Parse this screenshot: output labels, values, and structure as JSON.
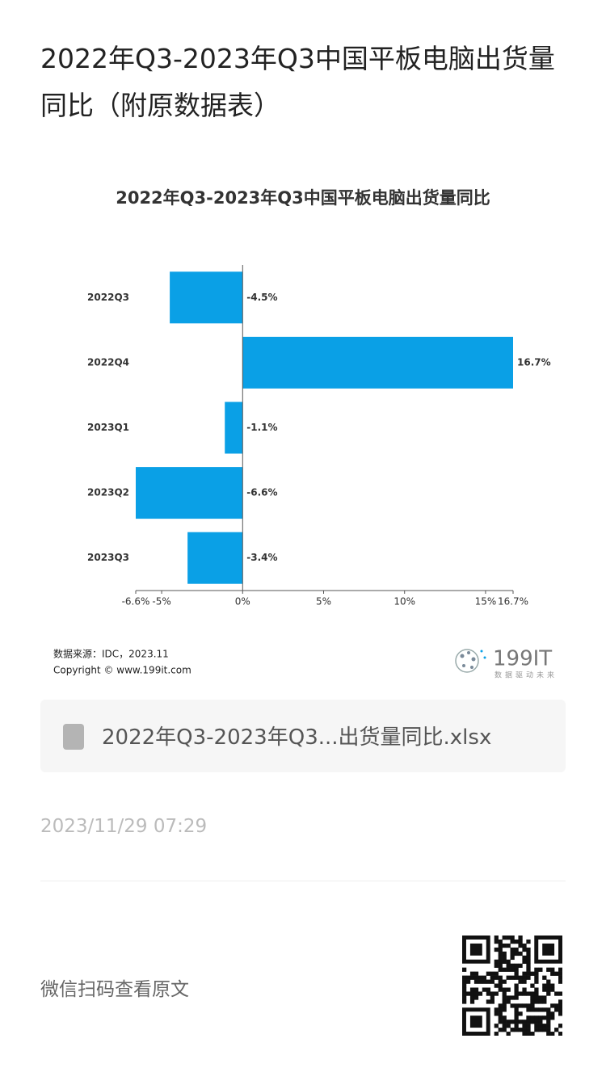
{
  "page_title": "2022年Q3-2023年Q3中国平板电脑出货量同比（附原数据表）",
  "chart_data": {
    "type": "barh",
    "title": "2022年Q3-2023年Q3中国平板电脑出货量同比",
    "categories": [
      "2022Q3",
      "2022Q4",
      "2023Q1",
      "2023Q2",
      "2023Q3"
    ],
    "values": [
      -4.5,
      16.7,
      -1.1,
      -6.6,
      -3.4
    ],
    "value_labels": [
      "-4.5%",
      "16.7%",
      "-1.1%",
      "-6.6%",
      "-3.4%"
    ],
    "color": "#0aa0e6",
    "xlim": [
      -6.6,
      16.7
    ],
    "xticks": [
      {
        "value": -6.6,
        "label": "-6.6%"
      },
      {
        "value": -5,
        "label": "-5%"
      },
      {
        "value": 0,
        "label": "0%"
      },
      {
        "value": 5,
        "label": "5%"
      },
      {
        "value": 10,
        "label": "10%"
      },
      {
        "value": 15,
        "label": "15%"
      },
      {
        "value": 16.7,
        "label": "16.7%"
      }
    ],
    "grid": false,
    "source": "数据来源：IDC，2023.11",
    "copyright": "Copyright © www.199it.com",
    "logo": "199IT",
    "logo_slogan": "数据驱动未来"
  },
  "attachment": "2022年Q3-2023年Q3...出货量同比.xlsx",
  "date": "2023/11/29 07:29",
  "footer": "微信扫码查看原文"
}
